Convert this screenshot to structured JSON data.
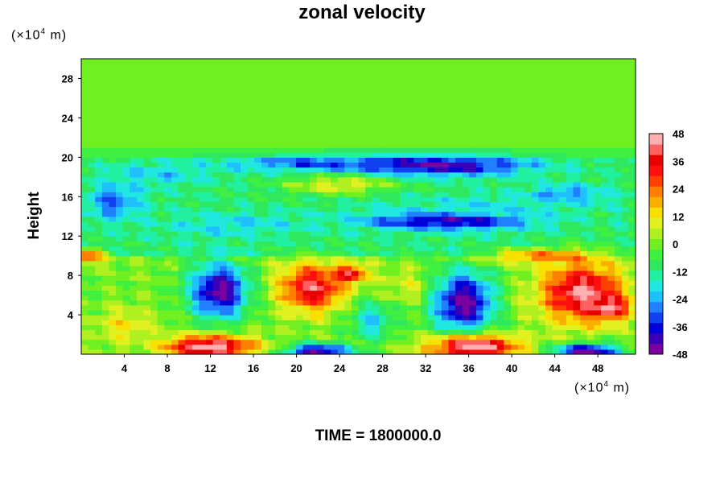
{
  "chart_data": {
    "type": "heatmap",
    "title": "zonal velocity",
    "ylabel": "Height",
    "y_unit_prefix": "(×10",
    "y_unit_exp": "4",
    "y_unit_suffix": " m)",
    "x_unit_prefix": "(×10",
    "x_unit_exp": "4",
    "x_unit_suffix": " m)",
    "footer": "TIME = 1800000.0",
    "xlim": [
      0,
      51.5
    ],
    "ylim": [
      0,
      30
    ],
    "x_ticks": [
      4,
      8,
      12,
      16,
      20,
      24,
      28,
      32,
      36,
      40,
      44,
      48
    ],
    "y_ticks": [
      4,
      8,
      12,
      16,
      20,
      24,
      28
    ],
    "colorbar": {
      "range": [
        -48,
        48
      ],
      "tick_values": [
        48,
        36,
        24,
        12,
        0,
        -12,
        -24,
        -36,
        -48
      ],
      "colors": [
        "#7a00a0",
        "#3a00b8",
        "#0000d8",
        "#1040f0",
        "#2080ff",
        "#20c0ff",
        "#20e8e0",
        "#20f0a0",
        "#30e860",
        "#40f040",
        "#70f020",
        "#b0f020",
        "#e0f020",
        "#f8e000",
        "#f8b000",
        "#ff8000",
        "#ff4000",
        "#ff1010",
        "#e80000",
        "#ff6060",
        "#ffb0b0"
      ]
    },
    "features": [
      {
        "kind": "background",
        "value": 0
      },
      {
        "kind": "band",
        "ymin": 20.2,
        "ymax": 21.0,
        "value": -5
      },
      {
        "kind": "band",
        "ymin": 10,
        "ymax": 20,
        "value": -10
      },
      {
        "kind": "blob",
        "x": 21,
        "y": 19.4,
        "rx": 9,
        "ry": 0.9,
        "value": -30
      },
      {
        "kind": "blob",
        "x": 33,
        "y": 19.2,
        "rx": 10,
        "ry": 1.2,
        "value": -44
      },
      {
        "kind": "blob",
        "x": 7,
        "y": 18.3,
        "rx": 6,
        "ry": 1.5,
        "value": -20
      },
      {
        "kind": "blob",
        "x": 24,
        "y": 17.2,
        "rx": 6,
        "ry": 1.2,
        "value": 10
      },
      {
        "kind": "blob",
        "x": 3,
        "y": 15.5,
        "rx": 3,
        "ry": 2,
        "value": -30
      },
      {
        "kind": "blob",
        "x": 45,
        "y": 16.3,
        "rx": 4,
        "ry": 1,
        "value": -30
      },
      {
        "kind": "blob",
        "x": 14,
        "y": 13.2,
        "rx": 8,
        "ry": 1.5,
        "value": -20
      },
      {
        "kind": "blob",
        "x": 34,
        "y": 13.6,
        "rx": 9,
        "ry": 1.1,
        "value": -44
      },
      {
        "kind": "blob",
        "x": 38,
        "y": 15.2,
        "rx": 12,
        "ry": 1.3,
        "value": -18
      },
      {
        "kind": "blob",
        "x": 12.8,
        "y": 6.5,
        "rx": 3.2,
        "ry": 3.3,
        "value": -46
      },
      {
        "kind": "blob",
        "x": 21.5,
        "y": 6.8,
        "rx": 3.6,
        "ry": 2.8,
        "value": 40
      },
      {
        "kind": "blob",
        "x": 25,
        "y": 8.2,
        "rx": 1.8,
        "ry": 1.0,
        "value": 40
      },
      {
        "kind": "blob",
        "x": 35.5,
        "y": 5.3,
        "rx": 3.4,
        "ry": 3.8,
        "value": -46
      },
      {
        "kind": "blob",
        "x": 46.5,
        "y": 6.3,
        "rx": 4.5,
        "ry": 3.5,
        "value": 44
      },
      {
        "kind": "blob",
        "x": 49,
        "y": 4.8,
        "rx": 2,
        "ry": 1.3,
        "value": 48
      },
      {
        "kind": "blob",
        "x": 12,
        "y": 0.8,
        "rx": 5,
        "ry": 1.3,
        "value": 48
      },
      {
        "kind": "blob",
        "x": 36.5,
        "y": 0.8,
        "rx": 5,
        "ry": 1.4,
        "value": 48
      },
      {
        "kind": "blob",
        "x": 22,
        "y": 0.3,
        "rx": 3.5,
        "ry": 0.9,
        "value": -46
      },
      {
        "kind": "blob",
        "x": 47,
        "y": 0.3,
        "rx": 3.6,
        "ry": 1.0,
        "value": -46
      },
      {
        "kind": "blob",
        "x": 4,
        "y": 3,
        "rx": 3,
        "ry": 2,
        "value": 12
      },
      {
        "kind": "blob",
        "x": 27,
        "y": 3.5,
        "rx": 2.5,
        "ry": 2.5,
        "value": -20
      },
      {
        "kind": "blob",
        "x": 30,
        "y": 7,
        "rx": 2.5,
        "ry": 2,
        "value": 8
      },
      {
        "kind": "blob",
        "x": 0.5,
        "y": 10,
        "rx": 2,
        "ry": 0.8,
        "value": 30
      },
      {
        "kind": "blob",
        "x": 43,
        "y": 10,
        "rx": 6,
        "ry": 0.8,
        "value": 25
      }
    ]
  }
}
